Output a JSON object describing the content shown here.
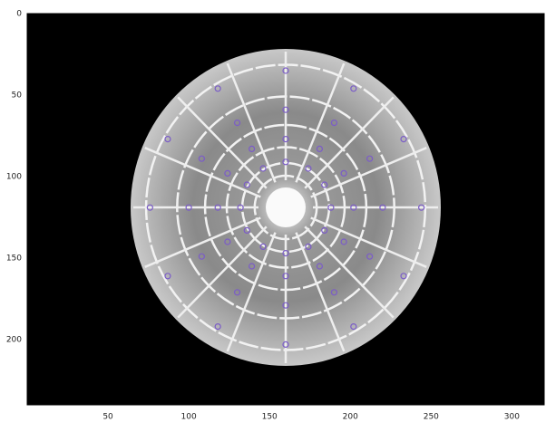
{
  "chart_data": {
    "type": "scatter",
    "xlim": [
      0,
      320
    ],
    "ylim": [
      0,
      240
    ],
    "xticks": [
      50,
      100,
      150,
      200,
      250,
      300
    ],
    "yticks": [
      0,
      50,
      100,
      150,
      200
    ],
    "y_reversed": true,
    "color": "#7b5cc8",
    "x": [
      244,
      233,
      202,
      160,
      118,
      87,
      76,
      87,
      118,
      160,
      202,
      233,
      220,
      212,
      190,
      160,
      130,
      108,
      100,
      108,
      130,
      160,
      190,
      212,
      202,
      196,
      181,
      160,
      139,
      124,
      118,
      124,
      139,
      160,
      181,
      196,
      188,
      184,
      174,
      160,
      146,
      136,
      132,
      136,
      146,
      160,
      174,
      184
    ],
    "y": [
      119,
      161,
      192,
      203,
      192,
      161,
      119,
      77,
      46,
      35,
      46,
      77,
      119,
      149,
      171,
      179,
      171,
      149,
      119,
      89,
      67,
      59,
      67,
      89,
      119,
      140,
      155,
      161,
      155,
      140,
      119,
      98,
      83,
      77,
      83,
      98,
      119,
      133,
      143,
      147,
      143,
      133,
      119,
      105,
      95,
      91,
      95,
      105
    ]
  }
}
